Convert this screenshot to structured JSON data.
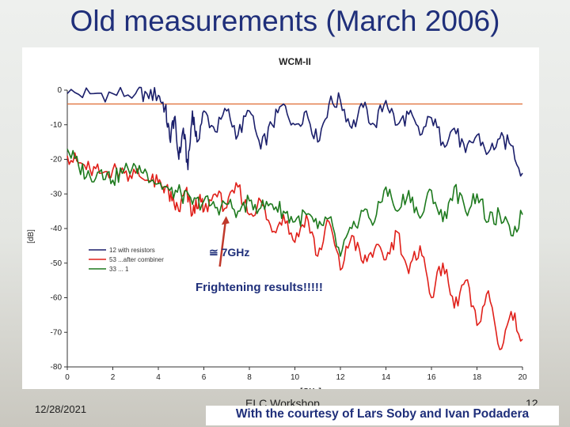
{
  "slide": {
    "title": "Old measurements (March 2006)",
    "footer_date": "12/28/2021",
    "footer_center": "ELC Workshop",
    "footer_page": "12",
    "courtesy": "With the courtesy of Lars Soby and Ivan Podadera"
  },
  "annotations": {
    "ghz": "≅ 7GHz",
    "frightening": "Frightening results!!!!!"
  },
  "colors": {
    "navy": "#1b1f6b",
    "red": "#e0201a",
    "green": "#1e7a1e",
    "orange_line": "#e06a30",
    "arrow": "#c0392b"
  },
  "chart_data": {
    "type": "line",
    "title": "WCM-II",
    "xlabel": "[GHz]",
    "ylabel": "[dB]",
    "xlim": [
      0,
      20
    ],
    "ylim": [
      -80,
      0
    ],
    "xticks": [
      "0",
      "2",
      "4",
      "6",
      "8",
      "10",
      "12",
      "14",
      "16",
      "18",
      "20"
    ],
    "yticks": [
      "0",
      "-10",
      "-20",
      "-30",
      "-40",
      "-50",
      "-60",
      "-70",
      "-80"
    ],
    "grid": false,
    "legend_position": "bottom-left",
    "reference_line_db": -4,
    "series": [
      {
        "name": "12 with resistors",
        "color": "#1b1f6b",
        "x": [
          0,
          1,
          2,
          3,
          3.5,
          4,
          4.3,
          4.5,
          4.7,
          4.9,
          5.1,
          5.3,
          5.5,
          5.7,
          6,
          6.5,
          7,
          7.5,
          8,
          8.5,
          9,
          9.5,
          10,
          10.5,
          11,
          11.5,
          12,
          12.5,
          13,
          13.5,
          14,
          14.5,
          15,
          15.5,
          16,
          16.5,
          17,
          17.5,
          18,
          18.5,
          19,
          19.5,
          20
        ],
        "y": [
          -1,
          -1,
          -1,
          -1,
          -1,
          -1.5,
          -5,
          -14,
          -8,
          -20,
          -11,
          -23,
          -6,
          -15,
          -6,
          -12,
          -6,
          -13,
          -6,
          -17,
          -10,
          -4,
          -10,
          -6,
          -15,
          -4,
          -3,
          -11,
          -5,
          -10,
          -3,
          -10,
          -7,
          -13,
          -8,
          -15,
          -11,
          -18,
          -13,
          -18,
          -14,
          -16,
          -24
        ]
      },
      {
        "name": "53 ...after combiner",
        "color": "#e0201a",
        "x": [
          0,
          0.5,
          1,
          1.5,
          2,
          2.5,
          3,
          3.5,
          4,
          4.3,
          4.6,
          4.9,
          5.2,
          5.5,
          5.8,
          6,
          6.5,
          7,
          7.5,
          8,
          8.5,
          9,
          9.5,
          10,
          10.5,
          11,
          11.5,
          12,
          12.5,
          13,
          13.5,
          14,
          14.5,
          15,
          15.5,
          16,
          16.5,
          17,
          17.5,
          18,
          18.5,
          19,
          19.5,
          20
        ],
        "y": [
          -19,
          -21,
          -23,
          -24,
          -23,
          -24,
          -24,
          -26,
          -27,
          -28,
          -32,
          -35,
          -29,
          -36,
          -31,
          -35,
          -30,
          -34,
          -28,
          -36,
          -32,
          -41,
          -36,
          -44,
          -36,
          -48,
          -38,
          -52,
          -42,
          -50,
          -46,
          -49,
          -41,
          -53,
          -45,
          -60,
          -50,
          -63,
          -55,
          -68,
          -58,
          -75,
          -64,
          -72
        ]
      },
      {
        "name": "33 ... 1",
        "color": "#1e7a1e",
        "x": [
          0,
          0.5,
          1,
          1.5,
          2,
          2.5,
          3,
          3.5,
          4,
          4.5,
          5,
          5.5,
          6,
          6.5,
          7,
          7.5,
          8,
          8.5,
          9,
          9.5,
          10,
          10.5,
          11,
          11.5,
          12,
          12.5,
          13,
          13.5,
          14,
          14.5,
          15,
          15.5,
          16,
          16.5,
          17,
          17.5,
          18,
          18.5,
          19,
          19.5,
          20
        ],
        "y": [
          -17,
          -22,
          -25,
          -23,
          -26,
          -23,
          -22,
          -24,
          -27,
          -29,
          -30,
          -33,
          -32,
          -34,
          -33,
          -35,
          -32,
          -34,
          -33,
          -35,
          -38,
          -36,
          -40,
          -37,
          -48,
          -40,
          -35,
          -38,
          -28,
          -35,
          -29,
          -37,
          -29,
          -38,
          -28,
          -35,
          -30,
          -38,
          -36,
          -42,
          -36
        ]
      }
    ]
  }
}
